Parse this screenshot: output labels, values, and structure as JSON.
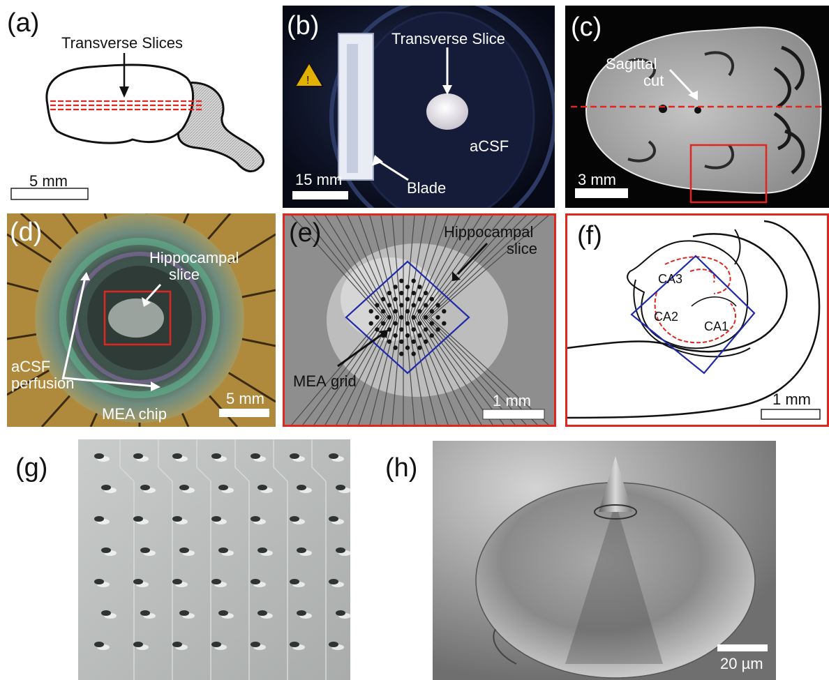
{
  "colors": {
    "red_marker": "#e0261e",
    "blue_grid": "#1f2aa8",
    "dark_bg": "#101830",
    "chip_gold": "#b08a3c"
  },
  "panels": {
    "a": {
      "label": "(a)",
      "annotation": "Transverse Slices",
      "scale": "5 mm"
    },
    "b": {
      "label": "(b)",
      "annotation_slice": "Transverse Slice",
      "annotation_acsf": "aCSF",
      "annotation_blade": "Blade",
      "scale": "15 mm"
    },
    "c": {
      "label": "(c)",
      "annotation_line1": "Sagittal",
      "annotation_line2": "cut",
      "scale": "3 mm"
    },
    "d": {
      "label": "(d)",
      "annotation_hippo_line1": "Hippocampal",
      "annotation_hippo_line2": "slice",
      "annotation_acsf_line1": "aCSF",
      "annotation_acsf_line2": "perfusion",
      "annotation_chip": "MEA chip",
      "scale": "5 mm"
    },
    "e": {
      "label": "(e)",
      "annotation_hippo_line1": "Hippocampal",
      "annotation_hippo_line2": "slice",
      "annotation_grid_line1": "MEA",
      "annotation_grid_line2": "grid",
      "scale": "1 mm"
    },
    "f": {
      "label": "(f)",
      "region_ca3": "CA3",
      "region_ca2": "CA2",
      "region_ca1": "CA1",
      "scale": "1 mm"
    },
    "g": {
      "label": "(g)"
    },
    "h": {
      "label": "(h)",
      "scale": "20 µm"
    }
  }
}
